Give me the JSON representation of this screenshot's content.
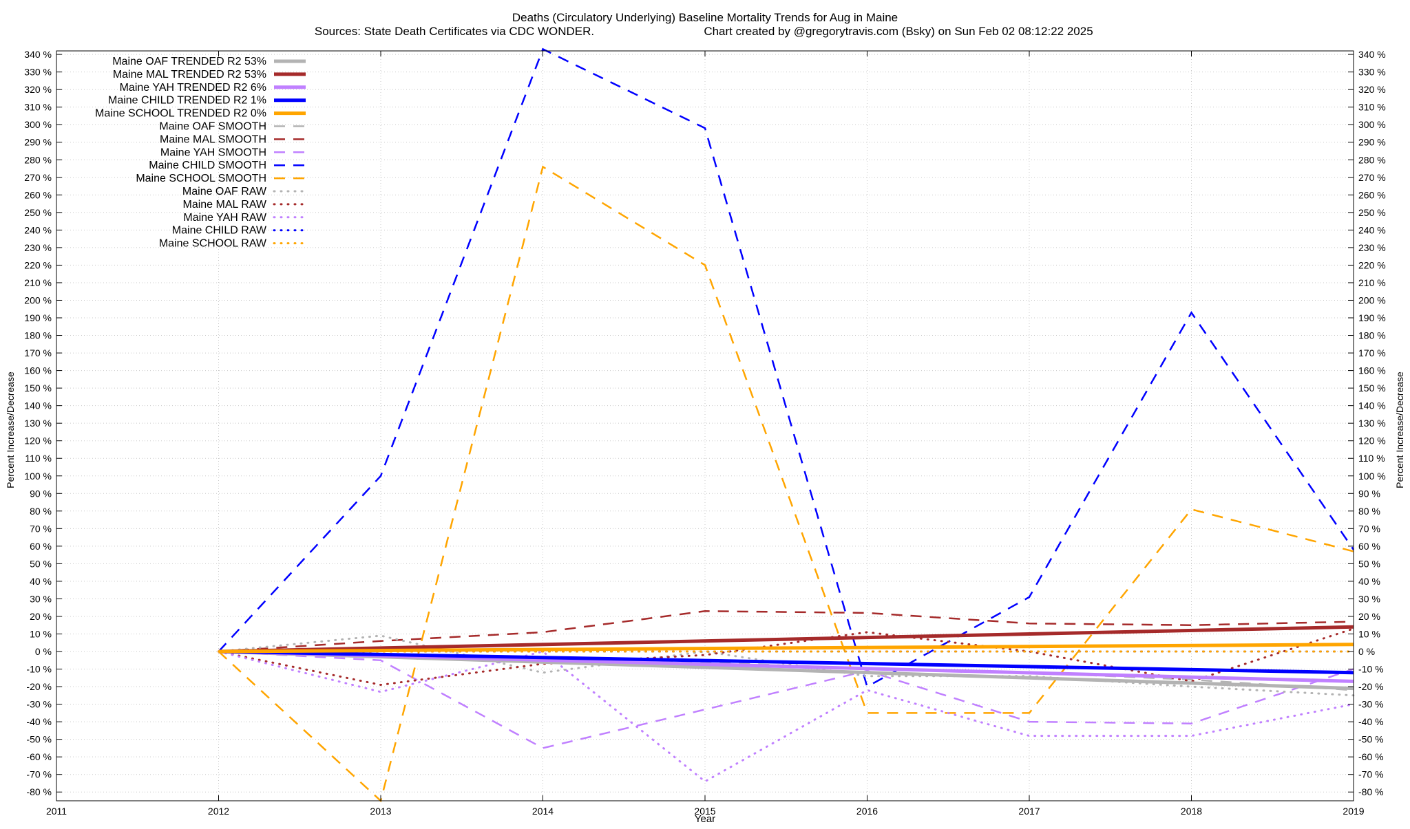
{
  "chart_data": {
    "type": "line",
    "title": "Deaths (Circulatory Underlying)  Baseline Mortality Trends for Aug in Maine",
    "subtitle_left": "Sources: State Death Certificates via CDC WONDER.",
    "subtitle_right": "Chart created by @gregorytravis.com (Bsky) on Sun Feb 02 08:12:22 2025",
    "xlabel": "Year",
    "ylabel": "Percent Increase/Decrease",
    "xlim": [
      2011,
      2019
    ],
    "ylim": [
      -85,
      342
    ],
    "x_ticks": [
      "2011",
      "2012",
      "2013",
      "2014",
      "2015",
      "2016",
      "2017",
      "2018",
      "2019"
    ],
    "y_ticks": [
      "-80 %",
      "-70 %",
      "-60 %",
      "-50 %",
      "-40 %",
      "-30 %",
      "-20 %",
      "-10 %",
      "0 %",
      "10 %",
      "20 %",
      "30 %",
      "40 %",
      "50 %",
      "60 %",
      "70 %",
      "80 %",
      "90 %",
      "100 %",
      "110 %",
      "120 %",
      "130 %",
      "140 %",
      "150 %",
      "160 %",
      "170 %",
      "180 %",
      "190 %",
      "200 %",
      "210 %",
      "220 %",
      "230 %",
      "240 %",
      "250 %",
      "260 %",
      "270 %",
      "280 %",
      "290 %",
      "300 %",
      "310 %",
      "320 %",
      "330 %",
      "340 %"
    ],
    "grid": true,
    "legend_position": "top-left",
    "series": [
      {
        "name": "Maine OAF TRENDED R2  53%",
        "color": "#b3b3b3",
        "style": "solid",
        "x": [
          2012,
          2019
        ],
        "y": [
          0,
          -21
        ]
      },
      {
        "name": "Maine MAL TRENDED R2  53%",
        "color": "#a52a2a",
        "style": "solid",
        "x": [
          2012,
          2019
        ],
        "y": [
          0,
          14
        ]
      },
      {
        "name": "Maine YAH TRENDED R2  6%",
        "color": "#c080ff",
        "style": "solid",
        "x": [
          2012,
          2019
        ],
        "y": [
          0,
          -17
        ]
      },
      {
        "name": "Maine CHILD TRENDED R2  1%",
        "color": "#0000ff",
        "style": "solid",
        "x": [
          2012,
          2019
        ],
        "y": [
          0,
          -12
        ]
      },
      {
        "name": "Maine SCHOOL TRENDED R2  0%",
        "color": "#ffa500",
        "style": "solid",
        "x": [
          2012,
          2019
        ],
        "y": [
          0,
          4
        ]
      },
      {
        "name": "Maine OAF SMOOTH",
        "color": "#b3b3b3",
        "style": "dashed",
        "x": [
          2012,
          2013,
          2014,
          2015,
          2016,
          2017,
          2018,
          2019
        ],
        "y": [
          0,
          -2,
          -3,
          -6,
          -10,
          -12,
          -16,
          -22
        ]
      },
      {
        "name": "Maine MAL SMOOTH",
        "color": "#a52a2a",
        "style": "dashed",
        "x": [
          2012,
          2013,
          2014,
          2015,
          2016,
          2017,
          2018,
          2019
        ],
        "y": [
          0,
          6,
          11,
          23,
          22,
          16,
          15,
          17
        ]
      },
      {
        "name": "Maine YAH SMOOTH",
        "color": "#c080ff",
        "style": "dashed",
        "x": [
          2012,
          2013,
          2014,
          2015,
          2016,
          2017,
          2018,
          2019
        ],
        "y": [
          0,
          -5,
          -55,
          -33,
          -11,
          -40,
          -41,
          -10
        ]
      },
      {
        "name": "Maine CHILD SMOOTH",
        "color": "#0000ff",
        "style": "dashed",
        "x": [
          2012,
          2013,
          2014,
          2015,
          2016,
          2017,
          2018,
          2019
        ],
        "y": [
          0,
          100,
          343,
          298,
          -20,
          31,
          193,
          58
        ]
      },
      {
        "name": "Maine SCHOOL SMOOTH",
        "color": "#ffa500",
        "style": "dashed",
        "x": [
          2012,
          2013,
          2014,
          2015,
          2016,
          2017,
          2018,
          2019
        ],
        "y": [
          0,
          -85,
          276,
          220,
          -35,
          -35,
          81,
          57
        ]
      },
      {
        "name": "Maine OAF RAW",
        "color": "#b3b3b3",
        "style": "dotted",
        "x": [
          2012,
          2013,
          2014,
          2015,
          2016,
          2017,
          2018,
          2019
        ],
        "y": [
          0,
          9,
          -12,
          0,
          -14,
          -14,
          -20,
          -25
        ]
      },
      {
        "name": "Maine MAL RAW",
        "color": "#a52a2a",
        "style": "dotted",
        "x": [
          2012,
          2013,
          2014,
          2015,
          2016,
          2017,
          2018,
          2019
        ],
        "y": [
          0,
          -19,
          -7,
          -2,
          11,
          0,
          -17,
          13
        ]
      },
      {
        "name": "Maine YAH RAW",
        "color": "#c080ff",
        "style": "dotted",
        "x": [
          2012,
          2013,
          2014,
          2015,
          2016,
          2017,
          2018,
          2019
        ],
        "y": [
          0,
          -23,
          0,
          -74,
          -22,
          -48,
          -48,
          -30
        ]
      },
      {
        "name": "Maine CHILD RAW",
        "color": "#0000ff",
        "style": "dotted",
        "x": [
          2012,
          2013,
          2014,
          2015,
          2016,
          2017,
          2018,
          2019
        ],
        "y": [
          0,
          0,
          0,
          0,
          0,
          0,
          0,
          0
        ]
      },
      {
        "name": "Maine SCHOOL RAW",
        "color": "#ffa500",
        "style": "dotted",
        "x": [
          2012,
          2013,
          2014,
          2015,
          2016,
          2017,
          2018,
          2019
        ],
        "y": [
          0,
          0,
          0,
          0,
          0,
          0,
          0,
          0
        ]
      }
    ]
  }
}
